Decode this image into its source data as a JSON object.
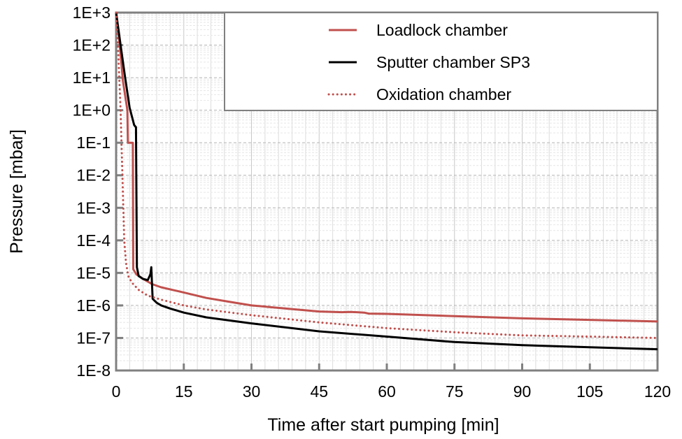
{
  "chart_data": {
    "type": "line",
    "xlabel": "Time after start pumping [min]",
    "ylabel": "Pressure [mbar]",
    "xlim": [
      0,
      120
    ],
    "ylim": [
      1e-08,
      1000.0
    ],
    "yscale": "log",
    "grid": true,
    "legend_position": "top-right",
    "xticks": [
      "0",
      "15",
      "30",
      "45",
      "60",
      "75",
      "90",
      "105",
      "120"
    ],
    "yticks": [
      "1E+3",
      "1E+2",
      "1E+1",
      "1E+0",
      "1E-1",
      "1E-2",
      "1E-3",
      "1E-4",
      "1E-5",
      "1E-6",
      "1E-7",
      "1E-8"
    ],
    "series": [
      {
        "name": "Loadlock chamber",
        "color": "#c0504d",
        "style": "solid",
        "x": [
          0,
          0.8,
          1.5,
          2.5,
          2.6,
          3.7,
          3.8,
          4.5,
          6,
          8,
          10,
          15,
          20,
          25,
          30,
          40,
          45,
          50,
          52,
          55,
          56,
          60,
          75,
          90,
          105,
          120
        ],
        "y": [
          1000,
          100,
          8,
          1.0,
          0.1,
          0.1,
          1.3e-05,
          9e-06,
          6.5e-06,
          4.5e-06,
          3.6e-06,
          2.5e-06,
          1.7e-06,
          1.3e-06,
          1e-06,
          7.5e-07,
          6.5e-07,
          6.2e-07,
          6.3e-07,
          6e-07,
          5.6e-07,
          5.5e-07,
          4.7e-07,
          4e-07,
          3.6e-07,
          3.2e-07
        ]
      },
      {
        "name": "Sputter chamber SP3",
        "color": "#000000",
        "style": "solid",
        "x": [
          0,
          1,
          2,
          3,
          4,
          4.4,
          4.6,
          5,
          6,
          7,
          7.6,
          7.8,
          8.1,
          9,
          10,
          12,
          15,
          20,
          30,
          45,
          60,
          75,
          90,
          105,
          120
        ],
        "y": [
          1000,
          100,
          10,
          1.2,
          0.35,
          0.3,
          1.5e-05,
          8e-06,
          6.5e-06,
          6e-06,
          9e-06,
          1.5e-05,
          1.6e-06,
          1.2e-06,
          1e-06,
          8e-07,
          6e-07,
          4.3e-07,
          2.8e-07,
          1.6e-07,
          1.1e-07,
          7.5e-08,
          6e-08,
          5.2e-08,
          4.5e-08
        ]
      },
      {
        "name": "Oxidation chamber",
        "color": "#c0504d",
        "style": "dotted",
        "x": [
          0,
          0.5,
          1,
          1.4,
          1.8,
          2.2,
          2.7,
          3.5,
          5,
          7,
          10,
          15,
          20,
          30,
          45,
          60,
          75,
          90,
          105,
          120
        ],
        "y": [
          1000,
          50,
          1,
          0.01,
          0.0001,
          2e-05,
          8e-06,
          5e-06,
          3e-06,
          2e-06,
          1.5e-06,
          1e-06,
          7.5e-07,
          5e-07,
          3e-07,
          2e-07,
          1.5e-07,
          1.2e-07,
          1.1e-07,
          1e-07
        ]
      }
    ]
  }
}
